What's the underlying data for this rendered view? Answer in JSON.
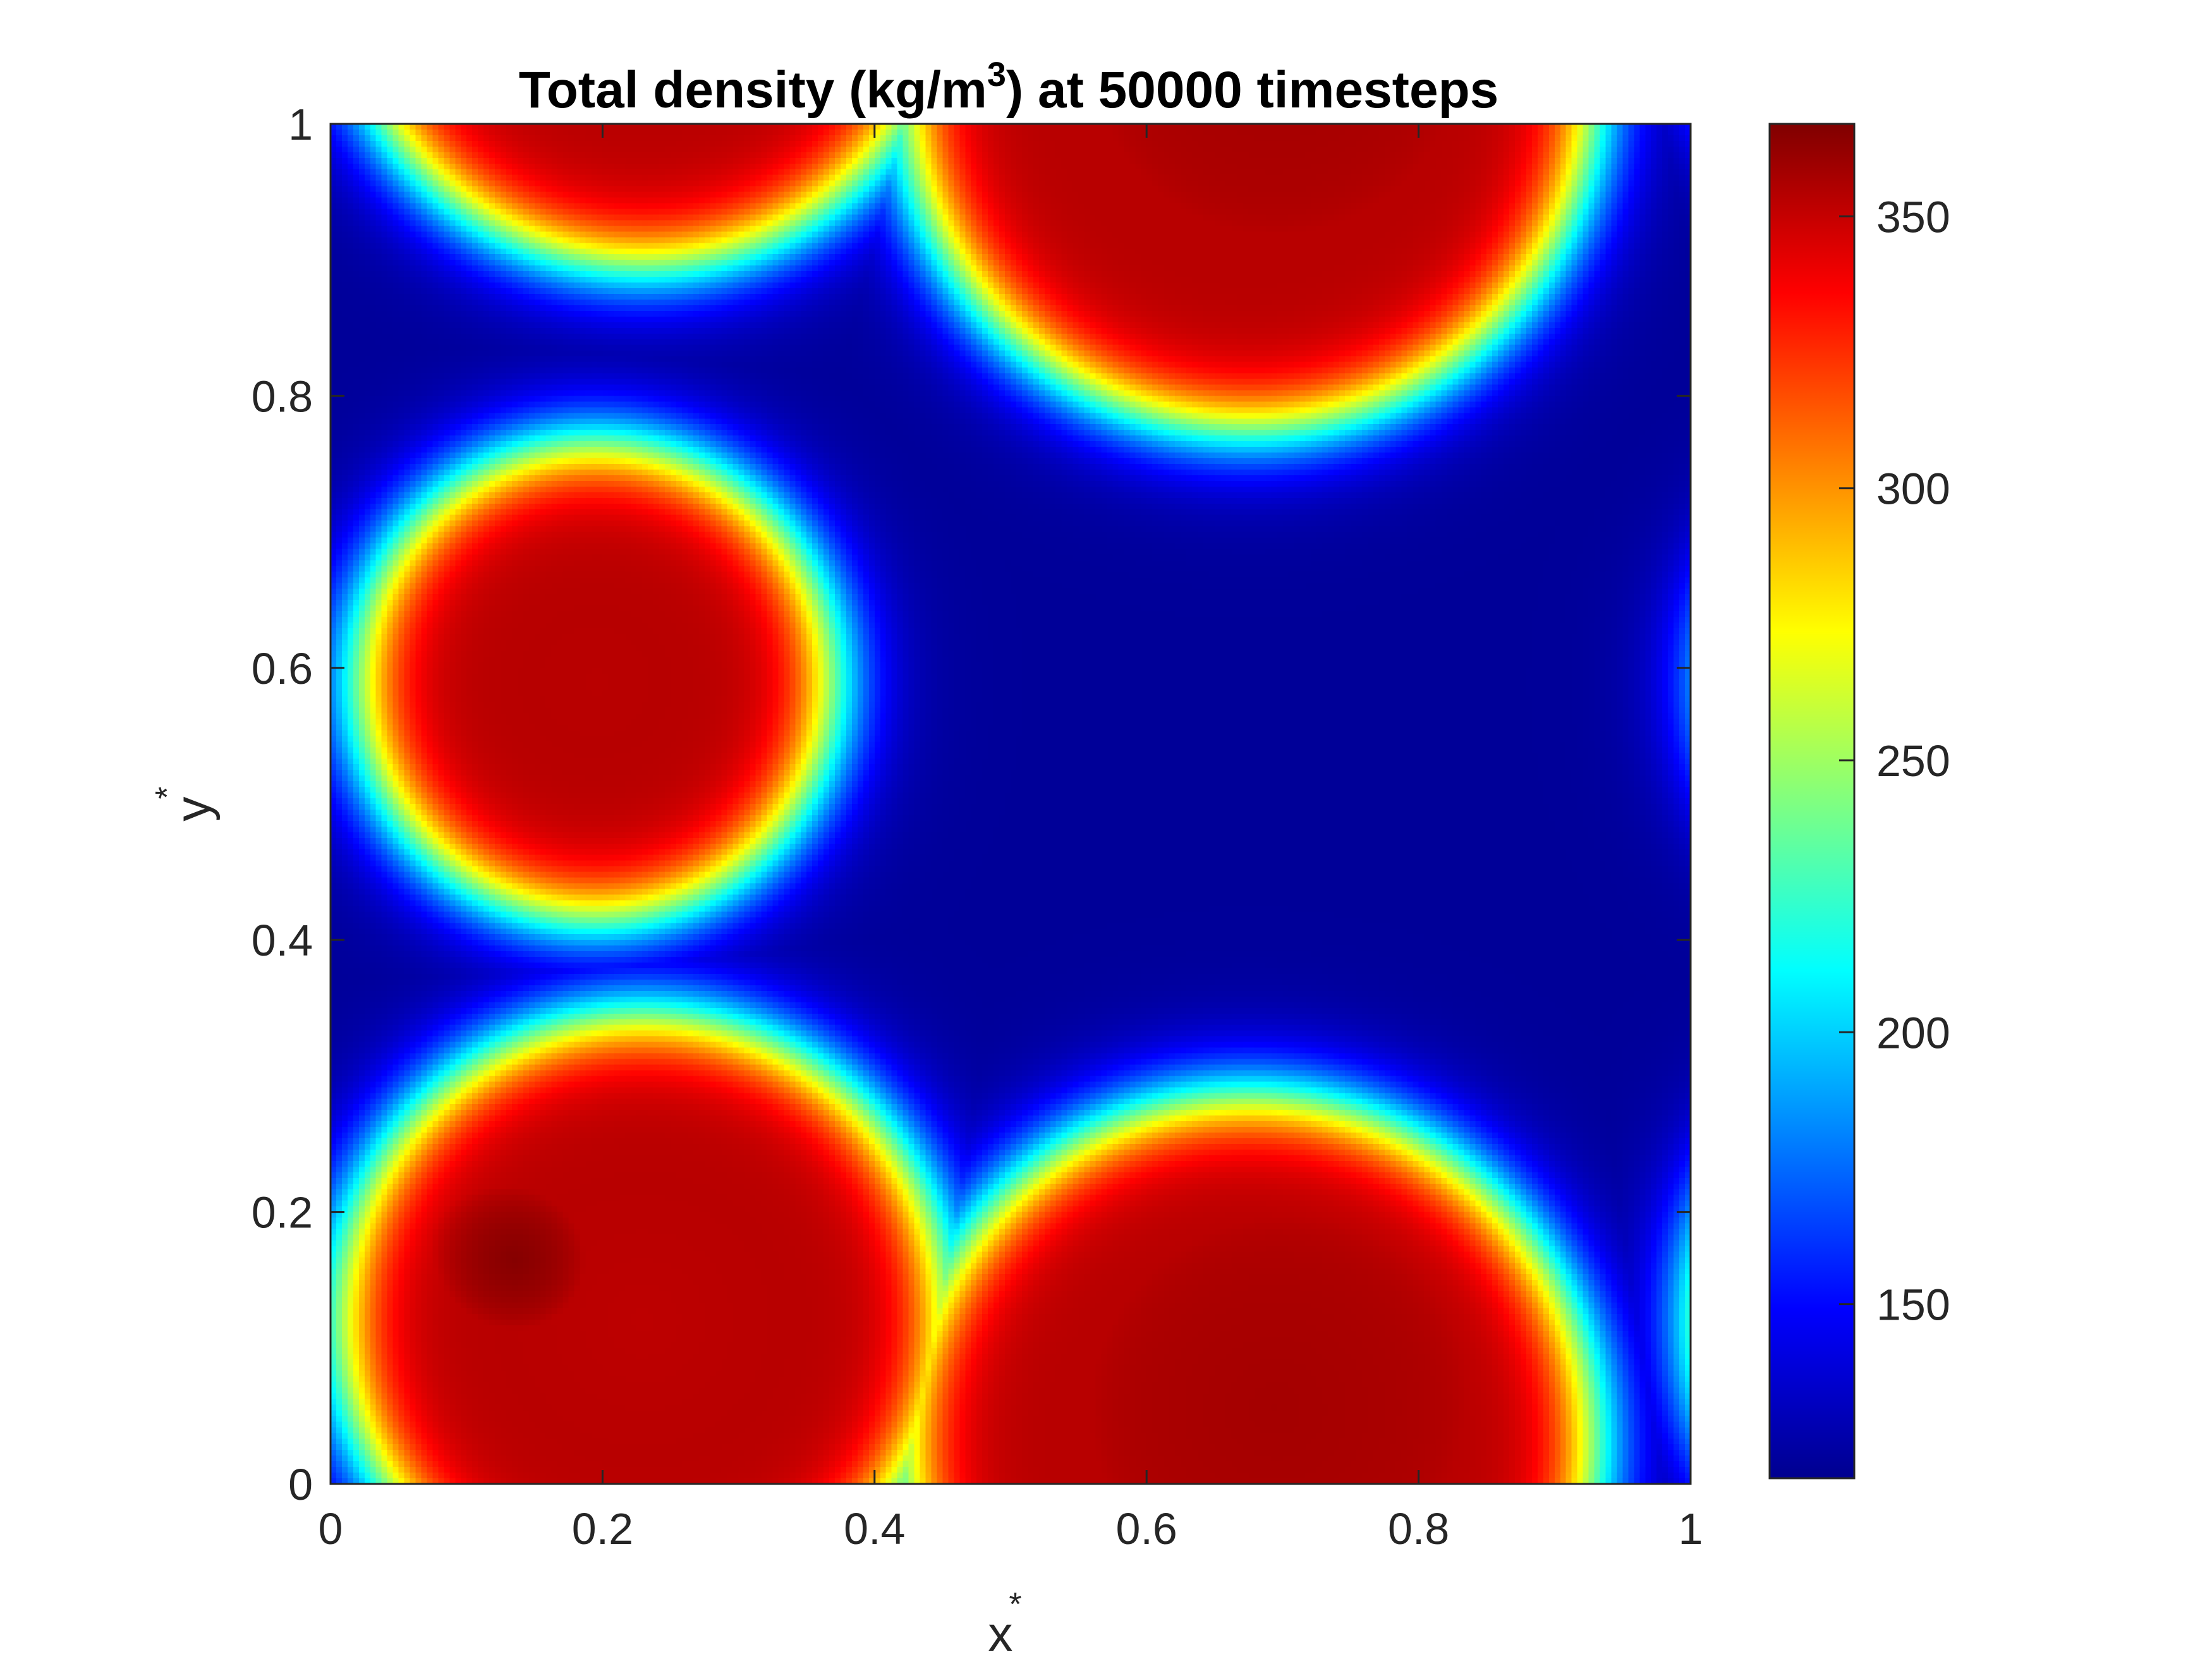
{
  "chart_data": {
    "type": "heatmap",
    "title": {
      "prefix": "Total density (kg/m",
      "superscript": "3",
      "suffix": ") at 50000 timesteps"
    },
    "xlabel": {
      "text": "x",
      "superscript": "*"
    },
    "ylabel": {
      "text": "y",
      "superscript": "*"
    },
    "xlim": [
      0,
      1
    ],
    "ylim": [
      0,
      1
    ],
    "xticks": [
      0,
      0.2,
      0.4,
      0.6,
      0.8,
      1
    ],
    "xtick_labels": [
      "0",
      "0.2",
      "0.4",
      "0.6",
      "0.8",
      "1"
    ],
    "yticks": [
      0,
      0.2,
      0.4,
      0.6,
      0.8,
      1
    ],
    "ytick_labels": [
      "0",
      "0.2",
      "0.4",
      "0.6",
      "0.8",
      "1"
    ],
    "colormap": "jet",
    "colorbar": {
      "limits": [
        118,
        367
      ],
      "ticks": [
        150,
        200,
        250,
        300,
        350
      ],
      "tick_labels": [
        "150",
        "200",
        "250",
        "300",
        "350"
      ],
      "placement": "right"
    },
    "background_density": 124,
    "high_density": 355,
    "periodic": true,
    "drops": [
      {
        "cx": 0.695,
        "cy": 1.055,
        "r": 0.215,
        "peak": 358
      },
      {
        "cx": 0.195,
        "cy": 0.59,
        "r": 0.175,
        "peak": 353
      },
      {
        "cx": 0.135,
        "cy": 0.165,
        "r": 0.112,
        "peak": 366
      },
      {
        "cx": 0.675,
        "cy": 0.03,
        "r": 0.255,
        "peak": 352
      },
      {
        "cx": 1.2,
        "cy": 0.52,
        "r": 0.01,
        "peak": 352
      },
      {
        "cx": 1.23,
        "cy": 0.12,
        "r": 0.225,
        "peak": 352
      }
    ],
    "grid": false
  }
}
